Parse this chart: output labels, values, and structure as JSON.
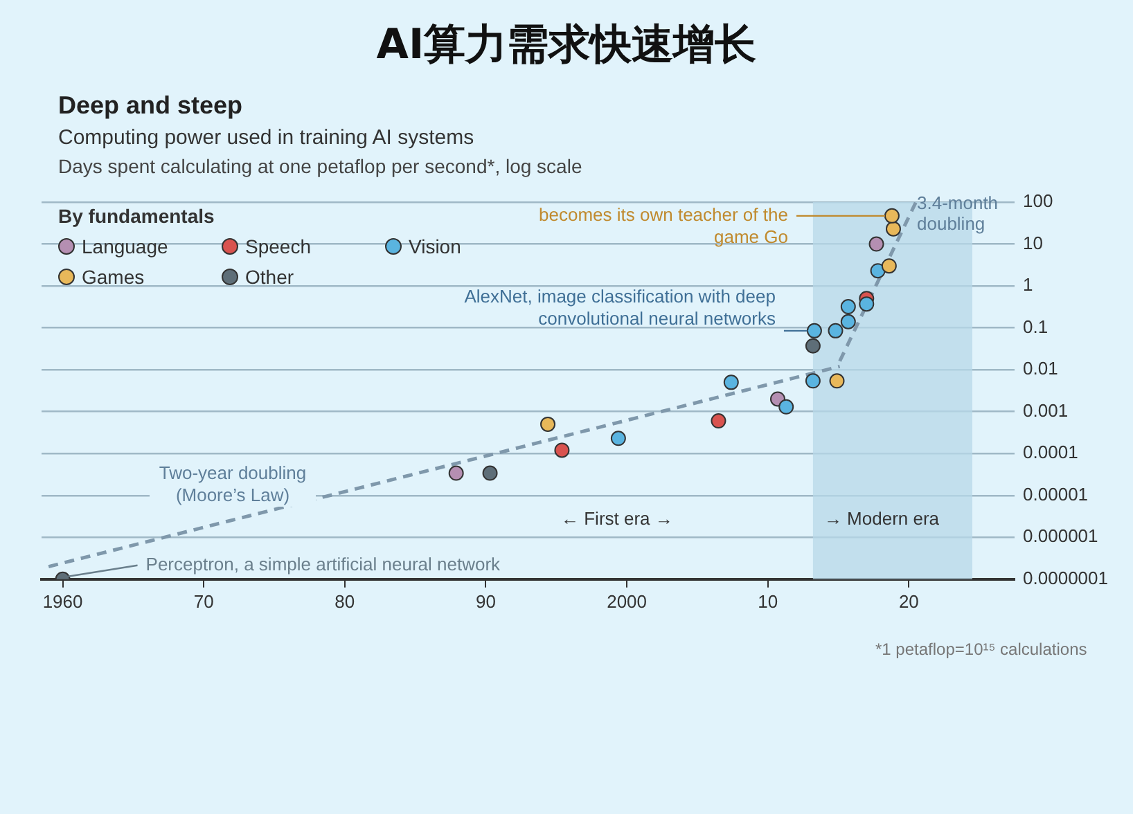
{
  "chart_data": {
    "type": "scatter",
    "title": "AI算力需求快速增长",
    "subtitle": "Deep and steep",
    "ylabel": "Days spent calculating at one petaflop per second*, log scale",
    "legend_title": "By fundamentals",
    "legend": "top left",
    "log": "y",
    "grid": "y",
    "marker": "circle",
    "xlim": [
      1958.5,
      2027.5
    ],
    "xticks": [
      {
        "value": 1960,
        "label": "1960"
      },
      {
        "value": 1970,
        "label": "70"
      },
      {
        "value": 1980,
        "label": "80"
      },
      {
        "value": 1990,
        "label": "90"
      },
      2000,
      {
        "value": 2010,
        "label": "10"
      },
      {
        "value": 2020,
        "label": "20"
      }
    ],
    "ylim": [
      1e-07,
      100
    ],
    "yticks": [
      {
        "value": 1e-07,
        "label": "0.0000001"
      },
      {
        "value": 1e-06,
        "label": "0.000001"
      },
      {
        "value": 1e-05,
        "label": "0.00001"
      },
      0.0001,
      0.001,
      0.01,
      0.1,
      1,
      10,
      100
    ],
    "series": [
      {
        "name": "Language",
        "color": "#b58fb2",
        "x": [
          1987.9,
          2010.7,
          2017.7
        ],
        "values": [
          3.4e-05,
          0.002,
          10
        ]
      },
      {
        "name": "Speech",
        "color": "#d9534f",
        "x": [
          1995.4,
          2006.5,
          2017.0
        ],
        "values": [
          0.00012,
          0.0006,
          0.5
        ]
      },
      {
        "name": "Vision",
        "color": "#5ab4e0",
        "x": [
          1999.4,
          2007.4,
          2011.3,
          2013.2,
          2013.3,
          2014.8,
          2015.7,
          2015.7,
          2017.0,
          2017.8
        ],
        "values": [
          0.00023,
          0.005,
          0.0013,
          0.0054,
          0.085,
          0.085,
          0.32,
          0.14,
          0.37,
          2.3
        ]
      },
      {
        "name": "Games",
        "color": "#e8b85a",
        "x": [
          1994.4,
          2014.9,
          2018.6,
          2018.9,
          2018.8
        ],
        "values": [
          0.0005,
          0.0054,
          3,
          23,
          47
        ]
      },
      {
        "name": "Other",
        "color": "#5e6e78",
        "x": [
          1960,
          1990.3,
          2013.2
        ],
        "values": [
          1e-07,
          3.4e-05,
          0.037
        ]
      },
      {
        "type": "line",
        "line_style": "dashed",
        "marker": "none",
        "color": "#7f98ab",
        "x": [
          1959,
          2015.1
        ],
        "values": [
          2e-07,
          0.012
        ]
      },
      {
        "type": "line",
        "line_style": "dashed",
        "marker": "none",
        "color": "#7f98ab",
        "x": [
          2015.1,
          2020.5
        ],
        "values": [
          0.016,
          100
        ]
      }
    ],
    "bands": [
      {
        "axis": "x",
        "from": 2013.2,
        "to": 2024.5,
        "label": "→ Modern era",
        "color": "#b7d8e8"
      }
    ],
    "annotations": [
      {
        "text": "becomes its own teacher of the game Go",
        "x": 2018.8,
        "y": 47
      },
      {
        "text": "AlexNet, image classification with deep convolutional neural networks",
        "x": 2013.3,
        "y": 0.085
      },
      {
        "text": "Perceptron, a simple artificial neural network",
        "x": 1960,
        "y": 1e-07
      },
      "Computing power used in training AI systems",
      "Two-year doubling (Moore’s Law)",
      "3.4-month doubling",
      "← First era →",
      "*1 petaflop=10¹⁵ calculations"
    ]
  }
}
